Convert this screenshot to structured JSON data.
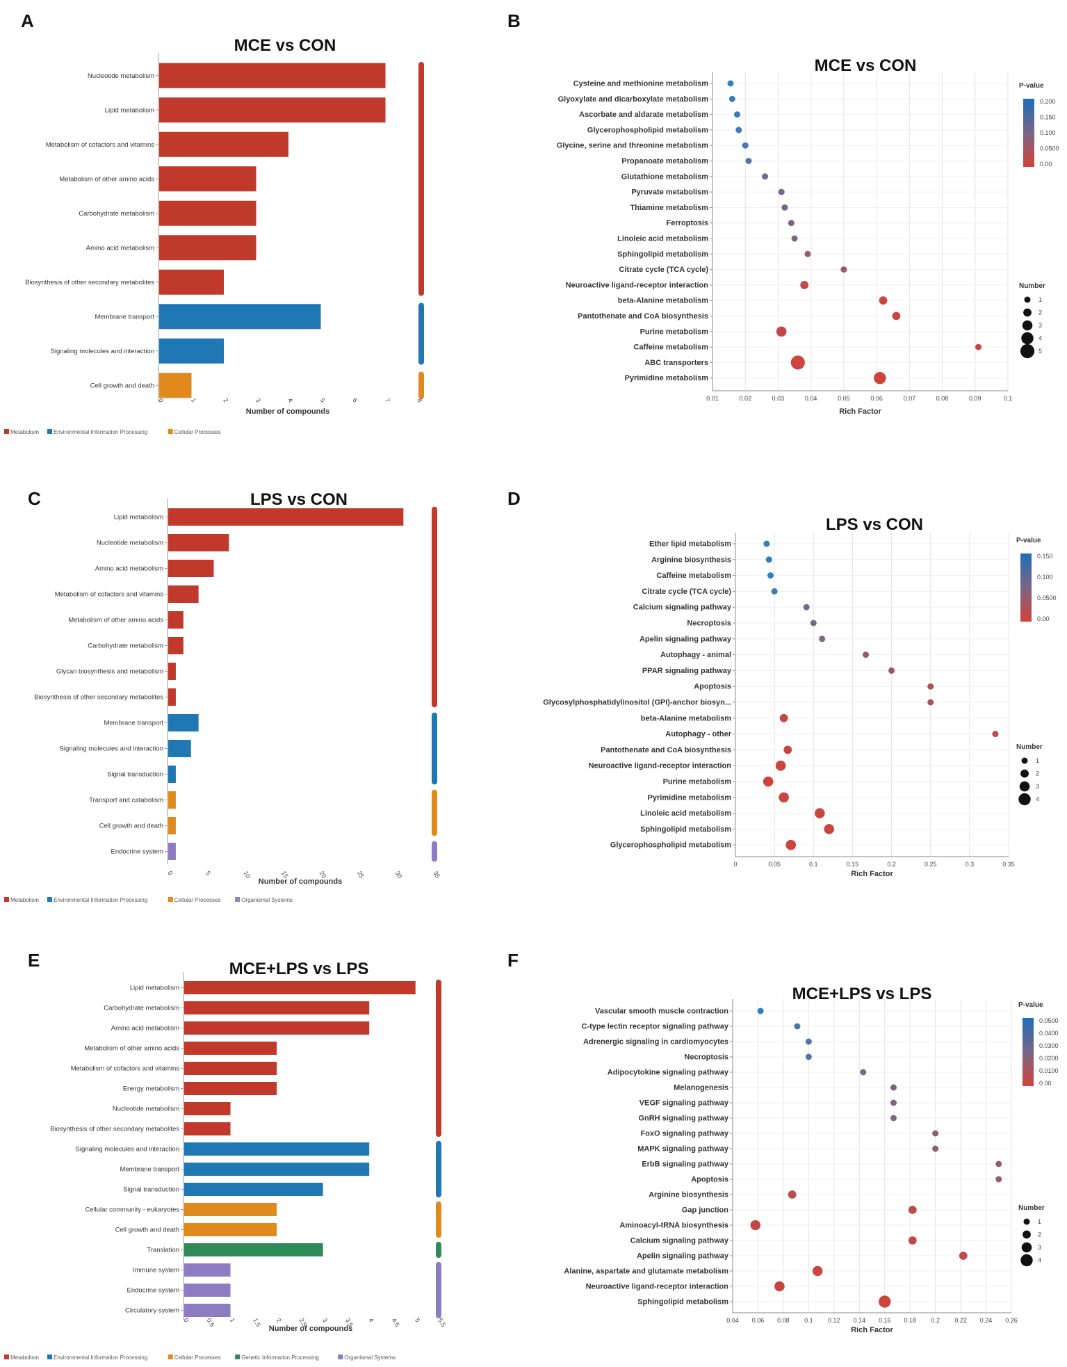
{
  "colors": {
    "Metabolism": "#c0392b",
    "Environmental Information Processing": "#1f77b4",
    "Cellular Processes": "#e08a1e",
    "Genetic Information Processing": "#2e8b57",
    "Organismal Systems": "#8e7cc3",
    "p_low": "#c8463b",
    "p_high": "#2f7fc1"
  },
  "chart_data": [
    {
      "panel": "A",
      "type": "bar",
      "orientation": "horizontal",
      "title": "MCE vs CON",
      "xlabel": "Number of compounds",
      "xlim": [
        0,
        8
      ],
      "xticks": [
        "0",
        "1",
        "2",
        "3",
        "4",
        "5",
        "6",
        "7",
        "8"
      ],
      "categories": [
        "Nucleotide metabolism",
        "Lipid metabolism",
        "Metabolism of cofactors and vitamins",
        "Metabolism of other amino acids",
        "Carbohydrate metabolism",
        "Amino acid metabolism",
        "Biosynthesis of other secondary metabolites",
        "Membrane transport",
        "Signaling molecules and interaction",
        "Cell growth and death"
      ],
      "values": [
        7,
        7,
        4,
        3,
        3,
        3,
        2,
        5,
        2,
        1
      ],
      "groups": [
        "Metabolism",
        "Metabolism",
        "Metabolism",
        "Metabolism",
        "Metabolism",
        "Metabolism",
        "Metabolism",
        "Environmental Information Processing",
        "Environmental Information Processing",
        "Cellular Processes"
      ],
      "legend": [
        "Metabolism",
        "Environmental Information Processing",
        "Cellular Processes"
      ]
    },
    {
      "panel": "B",
      "type": "scatter",
      "title": "MCE vs CON",
      "xlabel": "Rich Factor",
      "xlim": [
        0.01,
        0.1
      ],
      "xticks": [
        "0.01",
        "0.02",
        "0.03",
        "0.04",
        "0.05",
        "0.06",
        "0.07",
        "0.08",
        "0.09",
        "0.1"
      ],
      "categories": [
        "Cysteine and methionine metabolism",
        "Glyoxylate and dicarboxylate metabolism",
        "Ascorbate and aldarate metabolism",
        "Glycerophospholipid metabolism",
        "Glycine, serine and threonine metabolism",
        "Propanoate metabolism",
        "Glutathione metabolism",
        "Pyruvate metabolism",
        "Thiamine metabolism",
        "Ferroptosis",
        "Linoleic acid metabolism",
        "Sphingolipid metabolism",
        "Citrate cycle (TCA cycle)",
        "Neuroactive ligand-receptor interaction",
        "beta-Alanine metabolism",
        "Pantothenate and CoA biosynthesis",
        "Purine metabolism",
        "Caffeine metabolism",
        "ABC transporters",
        "Pyrimidine metabolism"
      ],
      "x": [
        0.0155,
        0.016,
        0.0175,
        0.018,
        0.02,
        0.021,
        0.026,
        0.031,
        0.032,
        0.034,
        0.035,
        0.039,
        0.05,
        0.038,
        0.062,
        0.066,
        0.031,
        0.091,
        0.036,
        0.061
      ],
      "pvalue": [
        0.205,
        0.195,
        0.19,
        0.185,
        0.17,
        0.165,
        0.13,
        0.11,
        0.105,
        0.1,
        0.095,
        0.075,
        0.06,
        0.02,
        0.01,
        0.008,
        0.02,
        0.015,
        0.005,
        0.002
      ],
      "number": [
        1,
        1,
        1,
        1,
        1,
        1,
        1,
        1,
        1,
        1,
        1,
        1,
        1,
        2,
        2,
        2,
        3,
        1,
        5,
        4
      ],
      "pvalue_legend_title": "P-value",
      "pvalue_ticks": [
        "0.200",
        "0.150",
        "0.100",
        "0.0500",
        "0.00"
      ],
      "number_legend_title": "Number",
      "number_legend": [
        "1",
        "2",
        "3",
        "4",
        "5"
      ]
    },
    {
      "panel": "C",
      "type": "bar",
      "orientation": "horizontal",
      "title": "LPS vs CON",
      "xlabel": "Number of compounds",
      "xlim": [
        0,
        35
      ],
      "xticks": [
        "0",
        "5",
        "10",
        "15",
        "20",
        "25",
        "30",
        "35"
      ],
      "categories": [
        "Lipid metabolism",
        "Nucleotide metabolism",
        "Amino acid metabolism",
        "Metabolism of cofactors and vitamins",
        "Metabolism of other amino acids",
        "Carbohydrate metabolism",
        "Glycan biosynthesis and metabolism",
        "Biosynthesis of other secondary metabolites",
        "Membrane transport",
        "Signaling molecules and interaction",
        "Signal transduction",
        "Transport and catabolism",
        "Cell growth and death",
        "Endocrine system"
      ],
      "values": [
        31,
        8,
        6,
        4,
        2,
        2,
        1,
        1,
        4,
        3,
        1,
        1,
        1,
        1
      ],
      "groups": [
        "Metabolism",
        "Metabolism",
        "Metabolism",
        "Metabolism",
        "Metabolism",
        "Metabolism",
        "Metabolism",
        "Metabolism",
        "Environmental Information Processing",
        "Environmental Information Processing",
        "Environmental Information Processing",
        "Cellular Processes",
        "Cellular Processes",
        "Organismal Systems"
      ],
      "legend": [
        "Metabolism",
        "Environmental Information Processing",
        "Cellular Processes",
        "Organismal Systems"
      ]
    },
    {
      "panel": "D",
      "type": "scatter",
      "title": "LPS vs CON",
      "xlabel": "Rich Factor",
      "xlim": [
        0,
        0.35
      ],
      "xticks": [
        "0",
        "0.05",
        "0.1",
        "0.15",
        "0.2",
        "0.25",
        "0.3",
        "0.35"
      ],
      "categories": [
        "Ether lipid metabolism",
        "Arginine biosynthesis",
        "Caffeine metabolism",
        "Citrate cycle (TCA cycle)",
        "Calcium signaling pathway",
        "Necroptosis",
        "Apelin signaling pathway",
        "Autophagy - animal",
        "PPAR signaling pathway",
        "Apoptosis",
        "Glycosylphosphatidylinositol (GPI)-anchor biosyn...",
        "beta-Alanine metabolism",
        "Autophagy - other",
        "Pantothenate and CoA biosynthesis",
        "Neuroactive ligand-receptor interaction",
        "Purine metabolism",
        "Pyrimidine metabolism",
        "Linoleic acid metabolism",
        "Sphingolipid metabolism",
        "Glycerophospholipid metabolism"
      ],
      "x": [
        0.04,
        0.043,
        0.045,
        0.05,
        0.091,
        0.1,
        0.111,
        0.167,
        0.2,
        0.25,
        0.25,
        0.062,
        0.333,
        0.067,
        0.058,
        0.042,
        0.062,
        0.108,
        0.12,
        0.071
      ],
      "pvalue": [
        0.165,
        0.16,
        0.158,
        0.15,
        0.09,
        0.085,
        0.07,
        0.05,
        0.04,
        0.03,
        0.03,
        0.01,
        0.02,
        0.006,
        0.005,
        0.003,
        0.004,
        0.008,
        0.006,
        0.003
      ],
      "number": [
        1,
        1,
        1,
        1,
        1,
        1,
        1,
        1,
        1,
        1,
        1,
        2,
        1,
        2,
        3,
        3,
        3,
        3,
        3,
        3
      ],
      "pvalue_legend_title": "P-value",
      "pvalue_ticks": [
        "0.150",
        "0.100",
        "0.0500",
        "0.00"
      ],
      "number_legend_title": "Number",
      "number_legend": [
        "1",
        "2",
        "3",
        "4"
      ]
    },
    {
      "panel": "E",
      "type": "bar",
      "orientation": "horizontal",
      "title": "MCE+LPS vs LPS",
      "xlabel": "Number of compounds",
      "xlim": [
        0,
        5.5
      ],
      "xticks": [
        "0",
        "0.5",
        "1",
        "1.5",
        "2",
        "2.5",
        "3",
        "3.5",
        "4",
        "4.5",
        "5",
        "5.5"
      ],
      "categories": [
        "Lipid metabolism",
        "Carbohydrate metabolism",
        "Amino acid metabolism",
        "Metabolism of other amino acids",
        "Metabolism of cofactors and vitamins",
        "Energy metabolism",
        "Nucleotide metabolism",
        "Biosynthesis of other secondary metabolites",
        "Signaling molecules and interaction",
        "Membrane transport",
        "Signal transduction",
        "Cellular community - eukaryotes",
        "Cell growth and death",
        "Translation",
        "Immune system",
        "Endocrine system",
        "Circulatory system"
      ],
      "values": [
        5,
        4,
        4,
        2,
        2,
        2,
        1,
        1,
        4,
        4,
        3,
        2,
        2,
        3,
        1,
        1,
        1
      ],
      "groups": [
        "Metabolism",
        "Metabolism",
        "Metabolism",
        "Metabolism",
        "Metabolism",
        "Metabolism",
        "Metabolism",
        "Metabolism",
        "Environmental Information Processing",
        "Environmental Information Processing",
        "Environmental Information Processing",
        "Cellular Processes",
        "Cellular Processes",
        "Genetic Information Processing",
        "Organismal Systems",
        "Organismal Systems",
        "Organismal Systems"
      ],
      "legend": [
        "Metabolism",
        "Environmental Information Processing",
        "Cellular Processes",
        "Genetic Information Processing",
        "Organismal Systems"
      ]
    },
    {
      "panel": "F",
      "type": "scatter",
      "title": "MCE+LPS vs LPS",
      "xlabel": "Rich Factor",
      "xlim": [
        0.04,
        0.26
      ],
      "xticks": [
        "0.04",
        "0.06",
        "0.08",
        "0.1",
        "0.12",
        "0.14",
        "0.16",
        "0.18",
        "0.2",
        "0.22",
        "0.24",
        "0.26"
      ],
      "categories": [
        "Vascular smooth muscle contraction",
        "C-type lectin receptor signaling pathway",
        "Adrenergic signaling in cardiomyocytes",
        "Necroptosis",
        "Adipocytokine signaling pathway",
        "Melanogenesis",
        "VEGF signaling pathway",
        "GnRH signaling pathway",
        "FoxO signaling pathway",
        "MAPK signaling pathway",
        "ErbB signaling pathway",
        "Apoptosis",
        "Arginine biosynthesis",
        "Gap junction",
        "Aminoacyl-tRNA biosynthesis",
        "Calcium signaling pathway",
        "Apelin signaling pathway",
        "Alanine, aspartate and glutamate metabolism",
        "Neuroactive ligand-receptor interaction",
        "Sphingolipid metabolism"
      ],
      "x": [
        0.062,
        0.091,
        0.1,
        0.1,
        0.143,
        0.167,
        0.167,
        0.167,
        0.2,
        0.2,
        0.25,
        0.25,
        0.087,
        0.182,
        0.058,
        0.182,
        0.222,
        0.107,
        0.077,
        0.16
      ],
      "pvalue": [
        0.05,
        0.045,
        0.042,
        0.04,
        0.028,
        0.025,
        0.024,
        0.024,
        0.02,
        0.019,
        0.018,
        0.017,
        0.008,
        0.006,
        0.004,
        0.005,
        0.006,
        0.003,
        0.002,
        0.001
      ],
      "number": [
        1,
        1,
        1,
        1,
        1,
        1,
        1,
        1,
        1,
        1,
        1,
        1,
        2,
        2,
        3,
        2,
        2,
        3,
        3,
        4
      ],
      "pvalue_legend_title": "P-value",
      "pvalue_ticks": [
        "0.0500",
        "0.0400",
        "0.0300",
        "0.0200",
        "0.0100",
        "0.00"
      ],
      "number_legend_title": "Number",
      "number_legend": [
        "1",
        "2",
        "3",
        "4"
      ]
    }
  ]
}
